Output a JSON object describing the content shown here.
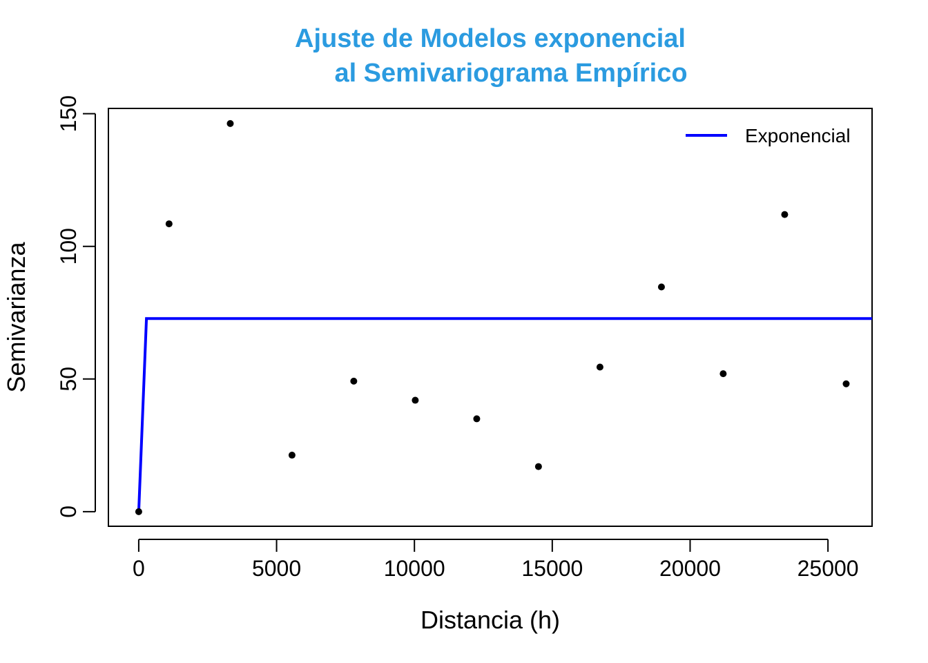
{
  "chart_data": {
    "type": "scatter",
    "title_lines": [
      "Ajuste de Modelos exponencial",
      "al Semivariograma Empírico"
    ],
    "title_color": "#2b9be0",
    "xlabel": "Distancia (h)",
    "ylabel": "Semivarianza",
    "xlim": [
      -1100,
      26600
    ],
    "ylim": [
      -5.5,
      152
    ],
    "x_ticks": [
      0,
      5000,
      10000,
      15000,
      20000,
      25000
    ],
    "y_ticks": [
      0,
      50,
      100,
      150
    ],
    "grid": false,
    "legend_position": "top-right",
    "points": {
      "x": [
        0,
        1100,
        3320,
        5560,
        7800,
        10030,
        12260,
        14500,
        16730,
        18960,
        21200,
        23430,
        25660
      ],
      "y": [
        0,
        108.5,
        146.3,
        21.3,
        49.2,
        42,
        35,
        17,
        54.5,
        84.7,
        52,
        112,
        48.2
      ],
      "color": "#000000"
    },
    "series": [
      {
        "name": "Exponencial",
        "color": "#0000ff",
        "x": [
          0,
          280,
          26600
        ],
        "y": [
          0,
          72.8,
          72.8
        ]
      }
    ]
  }
}
